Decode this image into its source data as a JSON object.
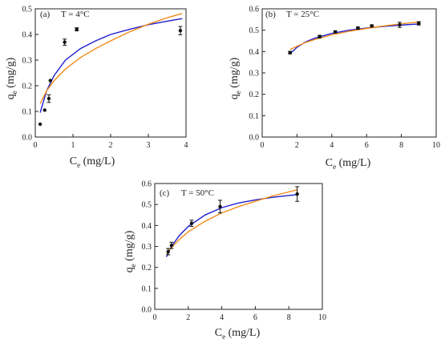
{
  "chart_data": [
    {
      "type": "scatter",
      "panel_label": "(a)",
      "temperature_label": "T = 4°C",
      "xlabel_main": "C",
      "xlabel_sub": "e",
      "xlabel_unit": " (mg/L)",
      "ylabel_main": "q",
      "ylabel_sub": "e",
      "ylabel_unit": " (mg/g)",
      "xlim": [
        0,
        4
      ],
      "ylim": [
        0,
        0.5
      ],
      "xticks": [
        "0",
        "1",
        "2",
        "3",
        "4"
      ],
      "yticks": [
        "0.0",
        "0.1",
        "0.2",
        "0.3",
        "0.4",
        "0.5"
      ],
      "points": [
        {
          "x": 0.13,
          "y": 0.05,
          "err": 0
        },
        {
          "x": 0.25,
          "y": 0.105,
          "err": 0
        },
        {
          "x": 0.36,
          "y": 0.15,
          "err": 0.015
        },
        {
          "x": 0.4,
          "y": 0.22,
          "err": 0
        },
        {
          "x": 0.78,
          "y": 0.37,
          "err": 0.012
        },
        {
          "x": 1.1,
          "y": 0.42,
          "err": 0.006
        },
        {
          "x": 3.85,
          "y": 0.415,
          "err": 0.016
        }
      ],
      "series": [
        {
          "color": "#1f1fcf",
          "x": [
            0.13,
            0.3,
            0.5,
            0.8,
            1.2,
            1.6,
            2.0,
            2.5,
            3.0,
            3.5,
            3.9
          ],
          "values": [
            0.095,
            0.18,
            0.24,
            0.3,
            0.345,
            0.375,
            0.4,
            0.42,
            0.438,
            0.452,
            0.462
          ]
        },
        {
          "color": "#f28c1c",
          "x": [
            0.13,
            0.3,
            0.5,
            0.8,
            1.2,
            1.6,
            2.0,
            2.5,
            3.0,
            3.5,
            3.9
          ],
          "values": [
            0.13,
            0.18,
            0.22,
            0.265,
            0.31,
            0.345,
            0.375,
            0.41,
            0.44,
            0.465,
            0.482
          ]
        }
      ]
    },
    {
      "type": "scatter",
      "panel_label": "(b)",
      "temperature_label": "T = 25°C",
      "xlabel_main": "C",
      "xlabel_sub": "e",
      "xlabel_unit": " (mg/L)",
      "ylabel_main": "q",
      "ylabel_sub": "e",
      "ylabel_unit": " (mg/g)",
      "xlim": [
        0,
        10
      ],
      "ylim": [
        0,
        0.6
      ],
      "xticks": [
        "0",
        "2",
        "4",
        "6",
        "8",
        "10"
      ],
      "yticks": [
        "0.0",
        "0.1",
        "0.2",
        "0.3",
        "0.4",
        "0.5",
        "0.6"
      ],
      "points": [
        {
          "x": 1.6,
          "y": 0.395,
          "err": 0.006
        },
        {
          "x": 3.3,
          "y": 0.47,
          "err": 0.006
        },
        {
          "x": 4.2,
          "y": 0.492,
          "err": 0.005
        },
        {
          "x": 5.5,
          "y": 0.51,
          "err": 0.005
        },
        {
          "x": 6.3,
          "y": 0.52,
          "err": 0.005
        },
        {
          "x": 7.9,
          "y": 0.525,
          "err": 0.012
        },
        {
          "x": 9.0,
          "y": 0.532,
          "err": 0.008
        }
      ],
      "series": [
        {
          "color": "#1f1fcf",
          "x": [
            1.6,
            2.0,
            2.5,
            3.0,
            4.0,
            5.0,
            6.0,
            7.0,
            8.0,
            9.0
          ],
          "values": [
            0.39,
            0.42,
            0.445,
            0.462,
            0.485,
            0.5,
            0.51,
            0.518,
            0.524,
            0.529
          ]
        },
        {
          "color": "#f28c1c",
          "x": [
            1.6,
            2.0,
            2.5,
            3.0,
            4.0,
            5.0,
            6.0,
            7.0,
            8.0,
            9.0
          ],
          "values": [
            0.41,
            0.425,
            0.443,
            0.456,
            0.478,
            0.495,
            0.508,
            0.52,
            0.53,
            0.538
          ]
        }
      ]
    },
    {
      "type": "scatter",
      "panel_label": "(c)",
      "temperature_label": "T = 50°C",
      "xlabel_main": "C",
      "xlabel_sub": "e",
      "xlabel_unit": " (mg/L)",
      "ylabel_main": "q",
      "ylabel_sub": "e",
      "ylabel_unit": " (mg/g)",
      "xlim": [
        0,
        10
      ],
      "ylim": [
        0,
        0.6
      ],
      "xticks": [
        "0",
        "2",
        "4",
        "6",
        "8",
        "10"
      ],
      "yticks": [
        "0.0",
        "0.1",
        "0.2",
        "0.3",
        "0.4",
        "0.5",
        "0.6"
      ],
      "points": [
        {
          "x": 0.8,
          "y": 0.275,
          "err": 0.015
        },
        {
          "x": 1.0,
          "y": 0.305,
          "err": 0.015
        },
        {
          "x": 2.2,
          "y": 0.41,
          "err": 0.015
        },
        {
          "x": 3.9,
          "y": 0.49,
          "err": 0.03
        },
        {
          "x": 8.5,
          "y": 0.55,
          "err": 0.035
        }
      ],
      "series": [
        {
          "color": "#1f1fcf",
          "x": [
            0.7,
            1.0,
            1.5,
            2.0,
            3.0,
            4.0,
            5.0,
            6.0,
            7.0,
            8.0,
            8.5
          ],
          "values": [
            0.25,
            0.3,
            0.355,
            0.395,
            0.45,
            0.485,
            0.507,
            0.522,
            0.534,
            0.543,
            0.547
          ]
        },
        {
          "color": "#f28c1c",
          "x": [
            0.7,
            1.0,
            1.5,
            2.0,
            3.0,
            4.0,
            5.0,
            6.0,
            7.0,
            8.0,
            8.5
          ],
          "values": [
            0.265,
            0.295,
            0.335,
            0.37,
            0.42,
            0.46,
            0.49,
            0.515,
            0.54,
            0.56,
            0.57
          ]
        }
      ]
    }
  ]
}
